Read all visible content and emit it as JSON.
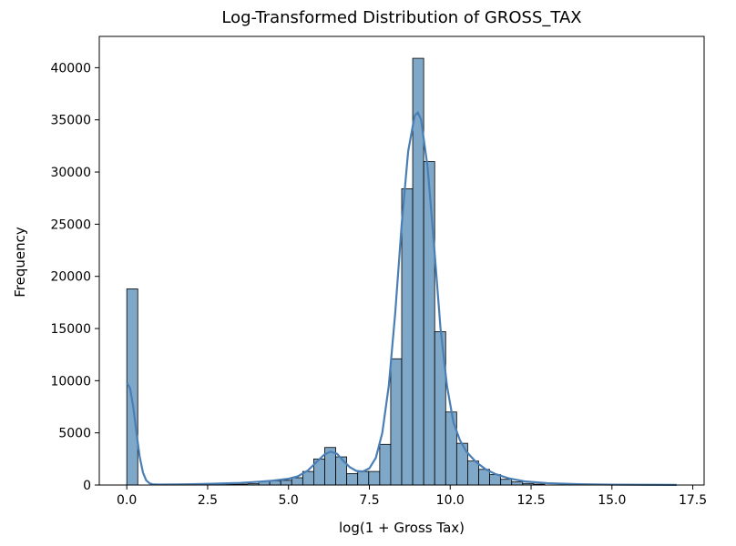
{
  "chart_data": {
    "type": "bar",
    "title": "Log-Transformed Distribution of GROSS_TAX",
    "xlabel": "log(1 + Gross Tax)",
    "ylabel": "Frequency",
    "xlim": [
      -0.85,
      17.85
    ],
    "ylim": [
      0,
      43000
    ],
    "xticks": [
      0,
      2.5,
      5,
      7.5,
      10,
      12.5,
      15,
      17.5
    ],
    "xtick_labels": [
      "0.0",
      "2.5",
      "5.0",
      "7.5",
      "10.0",
      "12.5",
      "15.0",
      "17.5"
    ],
    "yticks": [
      0,
      5000,
      10000,
      15000,
      20000,
      25000,
      30000,
      35000,
      40000
    ],
    "ytick_labels": [
      "0",
      "5000",
      "10000",
      "15000",
      "20000",
      "25000",
      "30000",
      "35000",
      "40000"
    ],
    "bar_color": "#7fa7c8",
    "bar_edge_color": "#000000",
    "kde_color": "#4a7fb5",
    "grid": false,
    "bin_width": 0.34,
    "bins": [
      {
        "x0": 0.0,
        "count": 18800
      },
      {
        "x0": 0.34,
        "count": 0
      },
      {
        "x0": 0.68,
        "count": 0
      },
      {
        "x0": 1.02,
        "count": 0
      },
      {
        "x0": 1.36,
        "count": 0
      },
      {
        "x0": 1.7,
        "count": 0
      },
      {
        "x0": 2.04,
        "count": 20
      },
      {
        "x0": 2.38,
        "count": 30
      },
      {
        "x0": 2.72,
        "count": 40
      },
      {
        "x0": 3.06,
        "count": 60
      },
      {
        "x0": 3.4,
        "count": 80
      },
      {
        "x0": 3.74,
        "count": 120
      },
      {
        "x0": 4.08,
        "count": 350
      },
      {
        "x0": 4.42,
        "count": 400
      },
      {
        "x0": 4.76,
        "count": 450
      },
      {
        "x0": 5.1,
        "count": 700
      },
      {
        "x0": 5.44,
        "count": 1300
      },
      {
        "x0": 5.78,
        "count": 2500
      },
      {
        "x0": 6.12,
        "count": 3600
      },
      {
        "x0": 6.46,
        "count": 2700
      },
      {
        "x0": 6.8,
        "count": 1100
      },
      {
        "x0": 7.14,
        "count": 1300
      },
      {
        "x0": 7.48,
        "count": 1300
      },
      {
        "x0": 7.82,
        "count": 3900
      },
      {
        "x0": 8.16,
        "count": 12100
      },
      {
        "x0": 8.5,
        "count": 28400
      },
      {
        "x0": 8.84,
        "count": 40900
      },
      {
        "x0": 9.18,
        "count": 31000
      },
      {
        "x0": 9.52,
        "count": 14700
      },
      {
        "x0": 9.86,
        "count": 7000
      },
      {
        "x0": 10.2,
        "count": 4000
      },
      {
        "x0": 10.54,
        "count": 2300
      },
      {
        "x0": 10.88,
        "count": 1500
      },
      {
        "x0": 11.22,
        "count": 1000
      },
      {
        "x0": 11.56,
        "count": 550
      },
      {
        "x0": 11.9,
        "count": 300
      },
      {
        "x0": 12.24,
        "count": 150
      },
      {
        "x0": 12.58,
        "count": 80
      }
    ],
    "kde": {
      "x": [
        0.0,
        0.1,
        0.2,
        0.3,
        0.4,
        0.5,
        0.6,
        0.7,
        0.8,
        1.0,
        1.5,
        2.0,
        2.5,
        3.0,
        3.5,
        4.0,
        4.5,
        5.0,
        5.3,
        5.6,
        5.9,
        6.1,
        6.3,
        6.5,
        6.7,
        6.9,
        7.1,
        7.3,
        7.5,
        7.7,
        7.9,
        8.1,
        8.3,
        8.5,
        8.7,
        8.9,
        9.0,
        9.1,
        9.3,
        9.5,
        9.7,
        9.9,
        10.1,
        10.3,
        10.5,
        10.8,
        11.1,
        11.4,
        11.8,
        12.3,
        13.0,
        14.0,
        15.0,
        16.0,
        17.0
      ],
      "y": [
        9800,
        9300,
        7500,
        5000,
        2700,
        1200,
        450,
        170,
        70,
        50,
        60,
        80,
        110,
        150,
        200,
        300,
        420,
        600,
        850,
        1400,
        2300,
        2900,
        3200,
        3000,
        2300,
        1700,
        1350,
        1300,
        1600,
        2600,
        5000,
        9500,
        16500,
        25000,
        32000,
        35400,
        35700,
        35000,
        30500,
        23000,
        15000,
        9500,
        6000,
        4300,
        3200,
        2200,
        1500,
        1050,
        650,
        350,
        180,
        80,
        40,
        20,
        10
      ]
    }
  }
}
